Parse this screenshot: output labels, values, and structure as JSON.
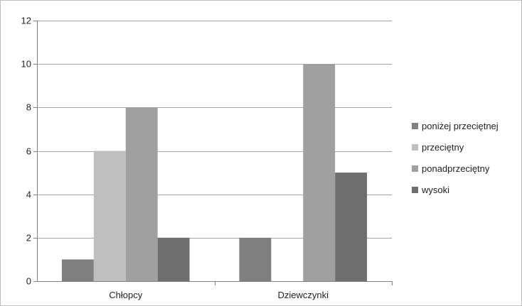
{
  "chart_data": {
    "type": "bar",
    "categories": [
      "Chłopcy",
      "Dziewczynki"
    ],
    "series": [
      {
        "name": "poniżej przeciętnej",
        "values": [
          1,
          2
        ],
        "color": "#7f7f7f"
      },
      {
        "name": "przeciętny",
        "values": [
          6,
          0
        ],
        "color": "#bfbfbf"
      },
      {
        "name": "ponadprzeciętny",
        "values": [
          8,
          10
        ],
        "color": "#a0a0a0"
      },
      {
        "name": "wysoki",
        "values": [
          2,
          5
        ],
        "color": "#6e6e6e"
      }
    ],
    "title": "",
    "xlabel": "",
    "ylabel": "",
    "ylim": [
      0,
      12
    ],
    "yticks": [
      0,
      2,
      4,
      6,
      8,
      10,
      12
    ],
    "grid": true,
    "legend_position": "right"
  }
}
